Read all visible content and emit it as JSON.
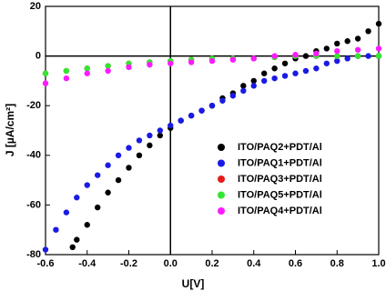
{
  "chart_data": {
    "type": "scatter",
    "x_label": "U[V]",
    "y_label": "J [µA/cm²]",
    "xlim": [
      -0.6,
      1
    ],
    "ylim": [
      -80,
      20
    ],
    "xticks": [
      -0.6,
      -0.4,
      -0.2,
      {
        "value": 0,
        "label": "0.0"
      },
      0.2,
      0.4,
      0.6,
      0.8,
      {
        "value": 1,
        "label": "1.0"
      }
    ],
    "yticks": [
      20,
      0,
      -20,
      -40,
      -60,
      -80
    ],
    "legend": "center-right",
    "series": [
      {
        "name": "ITO/PAQ2+PDT/Al",
        "color": "#000000",
        "x": [
          -0.47,
          -0.45,
          -0.4,
          -0.35,
          -0.3,
          -0.25,
          -0.2,
          -0.15,
          -0.1,
          -0.05,
          0,
          0.05,
          0.1,
          0.15,
          0.2,
          0.25,
          0.3,
          0.35,
          0.4,
          0.45,
          0.5,
          0.55,
          0.6,
          0.65,
          0.7,
          0.75,
          0.8,
          0.85,
          0.9,
          0.95,
          1
        ],
        "values": [
          -77,
          -74,
          -68,
          -61,
          -55,
          -50,
          -45,
          -40,
          -36,
          -32,
          -29,
          -26,
          -24,
          -22,
          -20,
          -17,
          -15,
          -12,
          -10,
          -7,
          -5,
          -3,
          -1,
          0,
          2,
          3,
          5,
          6,
          7,
          10,
          13
        ]
      },
      {
        "name": "ITO/PAQ1+PDT/Al",
        "color": "#1a1ae6",
        "x": [
          -0.6,
          -0.55,
          -0.5,
          -0.45,
          -0.4,
          -0.35,
          -0.3,
          -0.25,
          -0.2,
          -0.15,
          -0.1,
          -0.05,
          0,
          0.05,
          0.1,
          0.15,
          0.2,
          0.25,
          0.3,
          0.35,
          0.4,
          0.45,
          0.5,
          0.55,
          0.6,
          0.65,
          0.7,
          0.75,
          0.8,
          0.85,
          0.9,
          0.95,
          1
        ],
        "values": [
          -78,
          -70,
          -63,
          -57,
          -52,
          -48,
          -44,
          -40,
          -37,
          -34,
          -32,
          -30,
          -28,
          -26,
          -24,
          -22,
          -20,
          -18,
          -16,
          -14,
          -12,
          -10,
          -9,
          -8,
          -7,
          -6,
          -5,
          -3,
          -2,
          -1,
          0,
          0,
          0
        ]
      },
      {
        "name": "ITO/PAQ3+PDT/Al",
        "color": "#e61a1a",
        "x": [
          -0.6,
          -0.5,
          -0.4,
          -0.3,
          -0.2,
          -0.1,
          0,
          0.1,
          0.2,
          0.3,
          0.4,
          0.5,
          0.6,
          0.7,
          0.8,
          0.9,
          1
        ],
        "values": [
          -7,
          -6,
          -5,
          -4,
          -3,
          -2.5,
          -2,
          -1.5,
          -1,
          -1,
          -1,
          -0.5,
          0,
          0,
          0,
          0,
          0
        ]
      },
      {
        "name": "ITO/PAQ5+PDT/Al",
        "color": "#33e633",
        "x": [
          -0.6,
          -0.5,
          -0.4,
          -0.3,
          -0.2,
          -0.1,
          0,
          0.1,
          0.2,
          0.3,
          0.4,
          0.5,
          0.6,
          0.7,
          0.8,
          0.9,
          1
        ],
        "values": [
          -7,
          -6,
          -5,
          -4,
          -3,
          -2.5,
          -2,
          -1.5,
          -1,
          -1,
          -1,
          -0.5,
          0,
          0,
          0,
          0,
          0
        ]
      },
      {
        "name": "ITO/PAQ4+PDT/Al",
        "color": "#ff1aff",
        "x": [
          -0.6,
          -0.5,
          -0.4,
          -0.3,
          -0.2,
          -0.1,
          0,
          0.1,
          0.2,
          0.3,
          0.4,
          0.5,
          0.6,
          0.7,
          0.8,
          0.9,
          1
        ],
        "values": [
          -11,
          -9,
          -7,
          -6,
          -4.5,
          -3.5,
          -3,
          -2.5,
          -2,
          -1.5,
          -1,
          0,
          0.5,
          1,
          2,
          2.5,
          3
        ]
      }
    ]
  }
}
